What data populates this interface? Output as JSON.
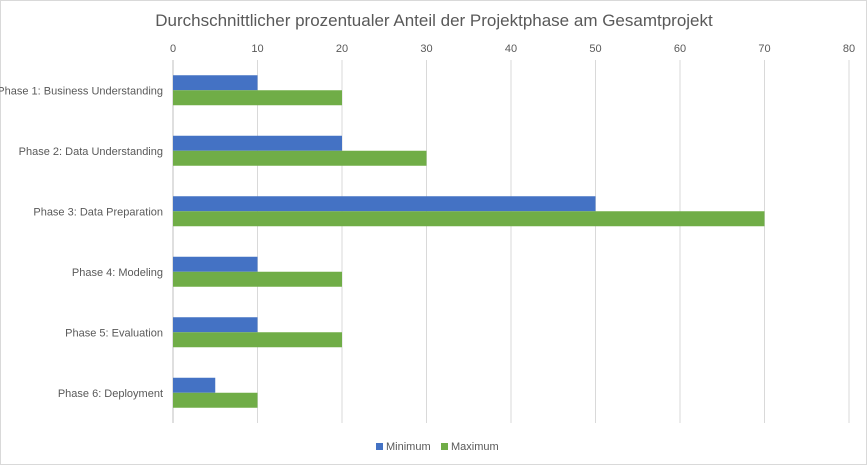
{
  "chart_data": {
    "type": "bar",
    "orientation": "horizontal",
    "title": "Durchschnittlicher prozentualer Anteil der Projektphase am Gesamtprojekt",
    "categories": [
      "Phase 1: Business Understanding",
      "Phase 2: Data Understanding",
      "Phase 3: Data Preparation",
      "Phase 4: Modeling",
      "Phase 5: Evaluation",
      "Phase 6: Deployment"
    ],
    "series": [
      {
        "name": "Minimum",
        "color": "#4472c4",
        "values": [
          10,
          20,
          50,
          10,
          10,
          5
        ]
      },
      {
        "name": "Maximum",
        "color": "#70ad47",
        "values": [
          20,
          30,
          70,
          20,
          20,
          10
        ]
      }
    ],
    "xlim": [
      0,
      80
    ],
    "xticks": [
      0,
      10,
      20,
      30,
      40,
      50,
      60,
      70,
      80
    ],
    "xaxis_position": "top",
    "grid": true,
    "legend_position": "bottom"
  }
}
